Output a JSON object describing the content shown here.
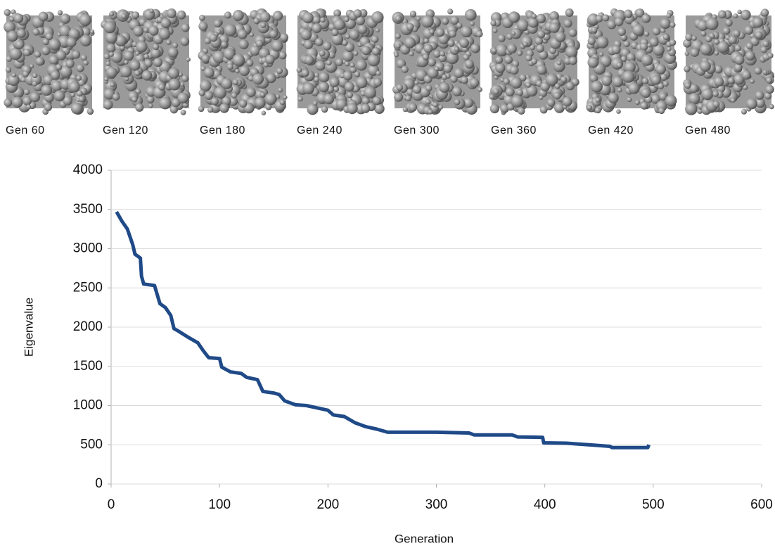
{
  "thumbnails": {
    "labels": [
      "Gen 60",
      "Gen 120",
      "Gen 180",
      "Gen 240",
      "Gen 300",
      "Gen 360",
      "Gen 420",
      "Gen 480"
    ]
  },
  "chart_data": {
    "type": "line",
    "xlabel": "Generation",
    "ylabel": "Eigenvalue",
    "x": [
      5,
      10,
      15,
      20,
      22,
      27,
      28,
      30,
      40,
      45,
      50,
      55,
      58,
      62,
      70,
      80,
      85,
      90,
      100,
      102,
      110,
      120,
      125,
      135,
      140,
      150,
      155,
      160,
      170,
      180,
      190,
      200,
      205,
      215,
      225,
      235,
      245,
      255,
      300,
      330,
      335,
      370,
      375,
      398,
      399,
      420,
      430,
      445,
      460,
      462,
      495,
      496
    ],
    "values": [
      3470,
      3350,
      3250,
      3050,
      2930,
      2880,
      2650,
      2550,
      2530,
      2300,
      2250,
      2150,
      1980,
      1950,
      1880,
      1800,
      1700,
      1610,
      1600,
      1490,
      1430,
      1410,
      1360,
      1330,
      1180,
      1160,
      1140,
      1060,
      1010,
      1000,
      970,
      940,
      880,
      860,
      780,
      730,
      700,
      660,
      660,
      650,
      625,
      625,
      600,
      595,
      525,
      520,
      510,
      495,
      480,
      465,
      465,
      500
    ],
    "color": "#1f4a87",
    "xlim": [
      0,
      600
    ],
    "xticks": [
      0,
      100,
      200,
      300,
      400,
      500,
      600
    ],
    "ylim": [
      0,
      4000
    ],
    "yticks": [
      0,
      500,
      1000,
      1500,
      2000,
      2500,
      3000,
      3500,
      4000
    ],
    "grid": true
  }
}
